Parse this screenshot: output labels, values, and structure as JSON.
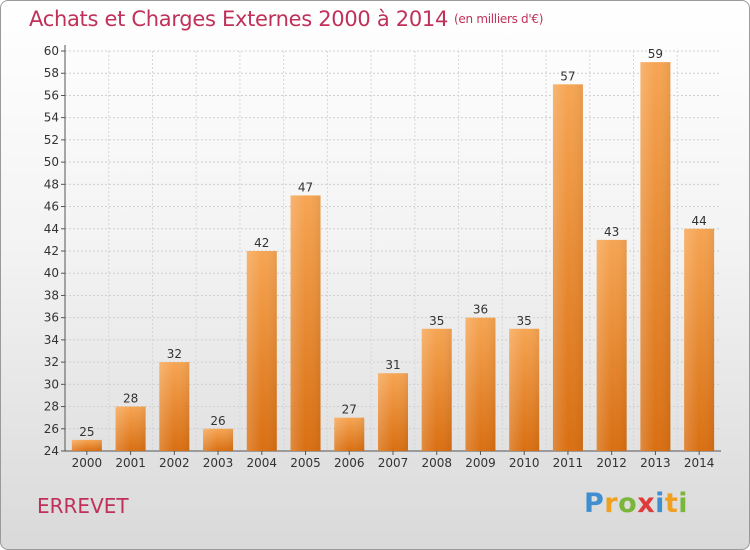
{
  "header": {
    "title": "Achats et Charges Externes 2000 à 2014",
    "unit": "(en milliers d'€)"
  },
  "footer": {
    "place": "ERREVET",
    "logo_letters": [
      "P",
      "r",
      "o",
      "x",
      "i",
      "t",
      "i"
    ],
    "logo_colors": [
      "#3f8fd0",
      "#f0a020",
      "#7ab63a",
      "#e03a3a",
      "#3f8fd0",
      "#f0a020",
      "#7ab63a"
    ]
  },
  "chart_data": {
    "type": "bar",
    "title": "Achats et Charges Externes 2000 à 2014",
    "unit": "(en milliers d'€)",
    "categories": [
      "2000",
      "2001",
      "2002",
      "2003",
      "2004",
      "2005",
      "2006",
      "2007",
      "2008",
      "2009",
      "2010",
      "2011",
      "2012",
      "2013",
      "2014"
    ],
    "values": [
      25,
      28,
      32,
      26,
      42,
      47,
      27,
      31,
      35,
      36,
      35,
      57,
      43,
      59,
      44
    ],
    "ylim": [
      24,
      60
    ],
    "yticks": [
      24,
      26,
      28,
      30,
      32,
      34,
      36,
      38,
      40,
      42,
      44,
      46,
      48,
      50,
      52,
      54,
      56,
      58,
      60
    ],
    "grid": true,
    "bar_color": "#f0a050"
  }
}
